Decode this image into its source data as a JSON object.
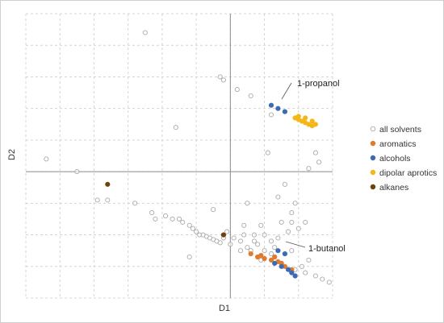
{
  "chart_data": {
    "type": "scatter",
    "title": "",
    "xlabel": "D1",
    "ylabel": "D2",
    "xlim": [
      -6,
      3
    ],
    "ylim": [
      -4,
      5
    ],
    "grid": true,
    "legend_position": "right",
    "tick_labels_shown": false,
    "series": [
      {
        "name": "all solvents",
        "color": "#aaaaaa",
        "marker": "open-circle",
        "points": [
          [
            -2.5,
            4.4
          ],
          [
            -0.3,
            3.0
          ],
          [
            -0.2,
            2.9
          ],
          [
            0.2,
            2.6
          ],
          [
            0.6,
            2.4
          ],
          [
            -1.6,
            1.4
          ],
          [
            -3.6,
            -0.9
          ],
          [
            -3.9,
            -0.9
          ],
          [
            -5.4,
            0.4
          ],
          [
            -4.5,
            0.0
          ],
          [
            -2.8,
            -1.0
          ],
          [
            -2.3,
            -1.3
          ],
          [
            -2.2,
            -1.5
          ],
          [
            -1.9,
            -1.4
          ],
          [
            -1.7,
            -1.5
          ],
          [
            -1.5,
            -1.5
          ],
          [
            -1.4,
            -1.6
          ],
          [
            -1.2,
            -1.7
          ],
          [
            -1.1,
            -1.8
          ],
          [
            -1.0,
            -1.9
          ],
          [
            -0.9,
            -2.0
          ],
          [
            -0.8,
            -2.0
          ],
          [
            -0.7,
            -2.05
          ],
          [
            -0.6,
            -2.1
          ],
          [
            -0.5,
            -2.15
          ],
          [
            -0.4,
            -2.2
          ],
          [
            -0.3,
            -2.25
          ],
          [
            -0.5,
            -1.2
          ],
          [
            -0.1,
            -1.9
          ],
          [
            -0.2,
            -2.1
          ],
          [
            0.4,
            -2.0
          ],
          [
            0.5,
            -1.0
          ],
          [
            1.4,
            -0.8
          ],
          [
            1.6,
            -0.4
          ],
          [
            2.2,
            -1.6
          ],
          [
            1.8,
            -1.3
          ],
          [
            2.3,
            0.1
          ],
          [
            2.6,
            0.3
          ],
          [
            2.5,
            0.6
          ],
          [
            1.1,
            0.6
          ],
          [
            1.2,
            1.8
          ],
          [
            -1.2,
            -2.7
          ],
          [
            0.1,
            -2.1
          ],
          [
            0.0,
            -2.3
          ],
          [
            1.8,
            -1.6
          ],
          [
            1.7,
            -1.9
          ],
          [
            1.9,
            -1.0
          ],
          [
            2.0,
            -1.8
          ],
          [
            1.5,
            -1.6
          ],
          [
            0.7,
            -2.2
          ],
          [
            0.8,
            -2.3
          ],
          [
            0.3,
            -2.5
          ],
          [
            0.5,
            -2.4
          ],
          [
            0.9,
            -1.7
          ],
          [
            0.7,
            -2.0
          ],
          [
            0.6,
            -2.5
          ],
          [
            1.9,
            -3.1
          ],
          [
            2.2,
            -3.2
          ],
          [
            2.5,
            -3.3
          ],
          [
            2.7,
            -3.4
          ],
          [
            2.9,
            -3.5
          ],
          [
            2.1,
            -3.0
          ],
          [
            1.4,
            -2.1
          ],
          [
            1.3,
            -2.4
          ],
          [
            1.8,
            -2.5
          ],
          [
            2.3,
            -2.8
          ],
          [
            0.4,
            -1.7
          ],
          [
            0.3,
            -2.2
          ],
          [
            1.0,
            -2.0
          ],
          [
            1.2,
            -2.2
          ],
          [
            1.0,
            -2.5
          ],
          [
            1.2,
            -2.6
          ],
          [
            0.9,
            -2.8
          ]
        ]
      },
      {
        "name": "aromatics",
        "color": "#e07b2e",
        "marker": "filled-circle",
        "points": [
          [
            0.6,
            -2.6
          ],
          [
            0.8,
            -2.7
          ],
          [
            1.0,
            -2.75
          ],
          [
            1.2,
            -2.8
          ],
          [
            1.4,
            -2.85
          ],
          [
            1.5,
            -2.9
          ],
          [
            1.6,
            -3.0
          ],
          [
            1.8,
            -3.1
          ],
          [
            1.3,
            -2.7
          ],
          [
            0.9,
            -2.65
          ]
        ]
      },
      {
        "name": "alcohols",
        "color": "#3d6bb3",
        "marker": "filled-circle",
        "points": [
          [
            1.2,
            2.1
          ],
          [
            1.4,
            2.0
          ],
          [
            1.6,
            1.9
          ],
          [
            1.4,
            -2.5
          ],
          [
            1.6,
            -2.6
          ],
          [
            1.5,
            -3.0
          ],
          [
            1.7,
            -3.1
          ],
          [
            1.8,
            -3.2
          ],
          [
            1.3,
            -2.9
          ],
          [
            1.9,
            -3.3
          ]
        ]
      },
      {
        "name": "dipolar aprotics",
        "color": "#f2b81a",
        "marker": "filled-circle",
        "points": [
          [
            1.9,
            1.7
          ],
          [
            2.0,
            1.65
          ],
          [
            2.1,
            1.6
          ],
          [
            2.2,
            1.55
          ],
          [
            2.3,
            1.5
          ],
          [
            2.4,
            1.45
          ],
          [
            2.2,
            1.7
          ],
          [
            2.4,
            1.6
          ],
          [
            2.0,
            1.75
          ],
          [
            2.5,
            1.5
          ]
        ]
      },
      {
        "name": "alkanes",
        "color": "#6b4410",
        "marker": "filled-circle",
        "points": [
          [
            -3.6,
            -0.4
          ],
          [
            -0.2,
            -2.0
          ]
        ]
      }
    ],
    "annotations": [
      {
        "text": "1-propanol",
        "x": 1.8,
        "y": 1.9
      },
      {
        "text": "1-butanol",
        "x": 2.6,
        "y": -2.9
      }
    ]
  }
}
